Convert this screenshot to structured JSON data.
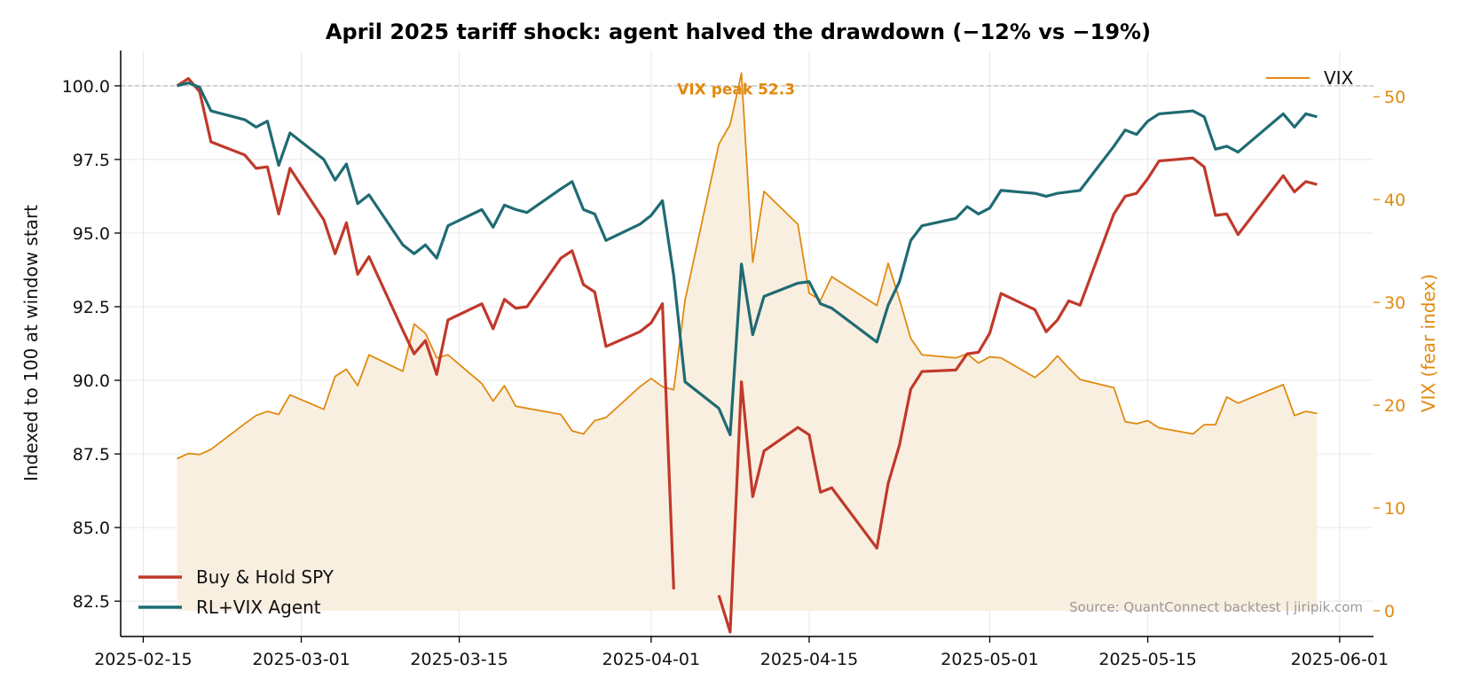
{
  "chart_data": {
    "type": "line",
    "title": "April 2025 tariff shock: agent halved the drawdown (−12% vs −19%)",
    "ylabel": "Indexed to 100 at window start",
    "y2label": "VIX (fear index)",
    "xlabel": "",
    "xlim": [
      "2025-02-13",
      "2025-06-04"
    ],
    "ylim": [
      81.3,
      101.2
    ],
    "y2lim": [
      -2.5,
      54.5
    ],
    "grid": true,
    "legend_placement": "lower-left",
    "legend2_placement": "top-right",
    "baseline": 100,
    "x_ticks": [
      "2025-02-15",
      "2025-03-01",
      "2025-03-15",
      "2025-04-01",
      "2025-04-15",
      "2025-05-01",
      "2025-05-15",
      "2025-06-01"
    ],
    "y_ticks": [
      "82.5",
      "85.0",
      "87.5",
      "90.0",
      "92.5",
      "95.0",
      "97.5",
      "100.0"
    ],
    "y2_ticks": [
      "0",
      "10",
      "20",
      "30",
      "40",
      "50"
    ],
    "colors": {
      "spy": "#c0392b",
      "agent": "#1f6b73",
      "vix": "#e08a10",
      "vix_fill": "#f9efe0"
    },
    "series": [
      {
        "name": "Buy & Hold SPY",
        "axis": "left",
        "points": [
          [
            "2025-02-18",
            100.0
          ],
          [
            "2025-02-19",
            100.25
          ],
          [
            "2025-02-20",
            99.8
          ],
          [
            "2025-02-21",
            98.1
          ],
          [
            "2025-02-24",
            97.65
          ],
          [
            "2025-02-25",
            97.2
          ],
          [
            "2025-02-26",
            97.25
          ],
          [
            "2025-02-27",
            95.65
          ],
          [
            "2025-02-28",
            97.2
          ],
          [
            "2025-03-03",
            95.45
          ],
          [
            "2025-03-04",
            94.3
          ],
          [
            "2025-03-05",
            95.35
          ],
          [
            "2025-03-06",
            93.6
          ],
          [
            "2025-03-07",
            94.2
          ],
          [
            "2025-03-10",
            91.7
          ],
          [
            "2025-03-11",
            90.9
          ],
          [
            "2025-03-12",
            91.35
          ],
          [
            "2025-03-13",
            90.2
          ],
          [
            "2025-03-14",
            92.05
          ],
          [
            "2025-03-17",
            92.6
          ],
          [
            "2025-03-18",
            91.75
          ],
          [
            "2025-03-19",
            92.75
          ],
          [
            "2025-03-20",
            92.45
          ],
          [
            "2025-03-21",
            92.5
          ],
          [
            "2025-03-24",
            94.15
          ],
          [
            "2025-03-25",
            94.4
          ],
          [
            "2025-03-26",
            93.25
          ],
          [
            "2025-03-27",
            93.0
          ],
          [
            "2025-03-28",
            91.15
          ],
          [
            "2025-03-31",
            91.65
          ],
          [
            "2025-04-01",
            91.95
          ],
          [
            "2025-04-02",
            92.6
          ],
          [
            "2025-04-03",
            82.9
          ],
          [
            "2025-04-04",
            null
          ],
          [
            "2025-04-07",
            82.7
          ],
          [
            "2025-04-08",
            81.45
          ],
          [
            "2025-04-09",
            89.95
          ],
          [
            "2025-04-10",
            86.05
          ],
          [
            "2025-04-11",
            87.6
          ],
          [
            "2025-04-14",
            88.4
          ],
          [
            "2025-04-15",
            88.15
          ],
          [
            "2025-04-16",
            86.2
          ],
          [
            "2025-04-17",
            86.35
          ],
          [
            "2025-04-21",
            84.3
          ],
          [
            "2025-04-22",
            86.5
          ],
          [
            "2025-04-23",
            87.8
          ],
          [
            "2025-04-24",
            89.7
          ],
          [
            "2025-04-25",
            90.3
          ],
          [
            "2025-04-28",
            90.35
          ],
          [
            "2025-04-29",
            90.9
          ],
          [
            "2025-04-30",
            90.95
          ],
          [
            "2025-05-01",
            91.6
          ],
          [
            "2025-05-02",
            92.95
          ],
          [
            "2025-05-05",
            92.4
          ],
          [
            "2025-05-06",
            91.65
          ],
          [
            "2025-05-07",
            92.05
          ],
          [
            "2025-05-08",
            92.7
          ],
          [
            "2025-05-09",
            92.55
          ],
          [
            "2025-05-12",
            95.65
          ],
          [
            "2025-05-13",
            96.25
          ],
          [
            "2025-05-14",
            96.35
          ],
          [
            "2025-05-15",
            96.85
          ],
          [
            "2025-05-16",
            97.45
          ],
          [
            "2025-05-19",
            97.55
          ],
          [
            "2025-05-20",
            97.25
          ],
          [
            "2025-05-21",
            95.6
          ],
          [
            "2025-05-22",
            95.65
          ],
          [
            "2025-05-23",
            94.95
          ],
          [
            "2025-05-27",
            96.95
          ],
          [
            "2025-05-28",
            96.4
          ],
          [
            "2025-05-29",
            96.75
          ],
          [
            "2025-05-30",
            96.65
          ]
        ]
      },
      {
        "name": "RL+VIX Agent",
        "axis": "left",
        "points": [
          [
            "2025-02-18",
            100.0
          ],
          [
            "2025-02-19",
            100.1
          ],
          [
            "2025-02-20",
            99.95
          ],
          [
            "2025-02-21",
            99.15
          ],
          [
            "2025-02-24",
            98.85
          ],
          [
            "2025-02-25",
            98.6
          ],
          [
            "2025-02-26",
            98.8
          ],
          [
            "2025-02-27",
            97.3
          ],
          [
            "2025-02-28",
            98.4
          ],
          [
            "2025-03-03",
            97.5
          ],
          [
            "2025-03-04",
            96.8
          ],
          [
            "2025-03-05",
            97.35
          ],
          [
            "2025-03-06",
            96.0
          ],
          [
            "2025-03-07",
            96.3
          ],
          [
            "2025-03-10",
            94.6
          ],
          [
            "2025-03-11",
            94.3
          ],
          [
            "2025-03-12",
            94.6
          ],
          [
            "2025-03-13",
            94.15
          ],
          [
            "2025-03-14",
            95.25
          ],
          [
            "2025-03-17",
            95.8
          ],
          [
            "2025-03-18",
            95.2
          ],
          [
            "2025-03-19",
            95.95
          ],
          [
            "2025-03-20",
            95.8
          ],
          [
            "2025-03-21",
            95.7
          ],
          [
            "2025-03-24",
            96.5
          ],
          [
            "2025-03-25",
            96.75
          ],
          [
            "2025-03-26",
            95.8
          ],
          [
            "2025-03-27",
            95.65
          ],
          [
            "2025-03-28",
            94.75
          ],
          [
            "2025-03-31",
            95.3
          ],
          [
            "2025-04-01",
            95.6
          ],
          [
            "2025-04-02",
            96.1
          ],
          [
            "2025-04-03",
            93.55
          ],
          [
            "2025-04-04",
            89.95
          ],
          [
            "2025-04-07",
            89.05
          ],
          [
            "2025-04-08",
            88.15
          ],
          [
            "2025-04-09",
            93.95
          ],
          [
            "2025-04-10",
            91.55
          ],
          [
            "2025-04-11",
            92.85
          ],
          [
            "2025-04-14",
            93.3
          ],
          [
            "2025-04-15",
            93.35
          ],
          [
            "2025-04-16",
            92.6
          ],
          [
            "2025-04-17",
            92.45
          ],
          [
            "2025-04-21",
            91.3
          ],
          [
            "2025-04-22",
            92.55
          ],
          [
            "2025-04-23",
            93.35
          ],
          [
            "2025-04-24",
            94.75
          ],
          [
            "2025-04-25",
            95.25
          ],
          [
            "2025-04-28",
            95.5
          ],
          [
            "2025-04-29",
            95.9
          ],
          [
            "2025-04-30",
            95.65
          ],
          [
            "2025-05-01",
            95.85
          ],
          [
            "2025-05-02",
            96.45
          ],
          [
            "2025-05-05",
            96.35
          ],
          [
            "2025-05-06",
            96.25
          ],
          [
            "2025-05-07",
            96.35
          ],
          [
            "2025-05-08",
            96.4
          ],
          [
            "2025-05-09",
            96.45
          ],
          [
            "2025-05-12",
            97.95
          ],
          [
            "2025-05-13",
            98.5
          ],
          [
            "2025-05-14",
            98.35
          ],
          [
            "2025-05-15",
            98.8
          ],
          [
            "2025-05-16",
            99.05
          ],
          [
            "2025-05-19",
            99.15
          ],
          [
            "2025-05-20",
            98.95
          ],
          [
            "2025-05-21",
            97.85
          ],
          [
            "2025-05-22",
            97.95
          ],
          [
            "2025-05-23",
            97.75
          ],
          [
            "2025-05-27",
            99.05
          ],
          [
            "2025-05-28",
            98.6
          ],
          [
            "2025-05-29",
            99.05
          ],
          [
            "2025-05-30",
            98.95
          ]
        ]
      },
      {
        "name": "VIX",
        "axis": "right",
        "points": [
          [
            "2025-02-18",
            14.8
          ],
          [
            "2025-02-19",
            15.3
          ],
          [
            "2025-02-20",
            15.2
          ],
          [
            "2025-02-21",
            15.7
          ],
          [
            "2025-02-24",
            18.2
          ],
          [
            "2025-02-25",
            19.0
          ],
          [
            "2025-02-26",
            19.4
          ],
          [
            "2025-02-27",
            19.1
          ],
          [
            "2025-02-28",
            21.0
          ],
          [
            "2025-03-03",
            19.6
          ],
          [
            "2025-03-04",
            22.8
          ],
          [
            "2025-03-05",
            23.5
          ],
          [
            "2025-03-06",
            21.9
          ],
          [
            "2025-03-07",
            24.9
          ],
          [
            "2025-03-10",
            23.3
          ],
          [
            "2025-03-11",
            27.9
          ],
          [
            "2025-03-12",
            27.0
          ],
          [
            "2025-03-13",
            24.6
          ],
          [
            "2025-03-14",
            24.9
          ],
          [
            "2025-03-17",
            22.1
          ],
          [
            "2025-03-18",
            20.4
          ],
          [
            "2025-03-19",
            21.9
          ],
          [
            "2025-03-20",
            19.9
          ],
          [
            "2025-03-21",
            19.7
          ],
          [
            "2025-03-24",
            19.1
          ],
          [
            "2025-03-25",
            17.5
          ],
          [
            "2025-03-26",
            17.2
          ],
          [
            "2025-03-27",
            18.5
          ],
          [
            "2025-03-28",
            18.8
          ],
          [
            "2025-03-31",
            21.8
          ],
          [
            "2025-04-01",
            22.6
          ],
          [
            "2025-04-02",
            21.8
          ],
          [
            "2025-04-03",
            21.5
          ],
          [
            "2025-04-04",
            30.2
          ],
          [
            "2025-04-07",
            45.4
          ],
          [
            "2025-04-08",
            47.3
          ],
          [
            "2025-04-09",
            52.3
          ],
          [
            "2025-04-10",
            33.9
          ],
          [
            "2025-04-11",
            40.8
          ],
          [
            "2025-04-14",
            37.6
          ],
          [
            "2025-04-15",
            30.9
          ],
          [
            "2025-04-16",
            30.2
          ],
          [
            "2025-04-17",
            32.5
          ],
          [
            "2025-04-21",
            29.7
          ],
          [
            "2025-04-22",
            33.8
          ],
          [
            "2025-04-23",
            30.3
          ],
          [
            "2025-04-24",
            26.5
          ],
          [
            "2025-04-25",
            24.9
          ],
          [
            "2025-04-28",
            24.6
          ],
          [
            "2025-04-29",
            25.0
          ],
          [
            "2025-04-30",
            24.1
          ],
          [
            "2025-05-01",
            24.7
          ],
          [
            "2025-05-02",
            24.6
          ],
          [
            "2025-05-05",
            22.7
          ],
          [
            "2025-05-06",
            23.6
          ],
          [
            "2025-05-07",
            24.8
          ],
          [
            "2025-05-08",
            23.6
          ],
          [
            "2025-05-09",
            22.5
          ],
          [
            "2025-05-12",
            21.7
          ],
          [
            "2025-05-13",
            18.4
          ],
          [
            "2025-05-14",
            18.2
          ],
          [
            "2025-05-15",
            18.5
          ],
          [
            "2025-05-16",
            17.8
          ],
          [
            "2025-05-19",
            17.2
          ],
          [
            "2025-05-20",
            18.1
          ],
          [
            "2025-05-21",
            18.1
          ],
          [
            "2025-05-22",
            20.8
          ],
          [
            "2025-05-23",
            20.2
          ],
          [
            "2025-05-27",
            22.0
          ],
          [
            "2025-05-28",
            19.0
          ],
          [
            "2025-05-29",
            19.4
          ],
          [
            "2025-05-30",
            19.2
          ]
        ]
      }
    ],
    "annotation": {
      "text": "VIX peak 52.3",
      "x": "2025-04-09",
      "y": 52.3
    },
    "source": "Source: QuantConnect backtest  |  jiripik.com"
  }
}
